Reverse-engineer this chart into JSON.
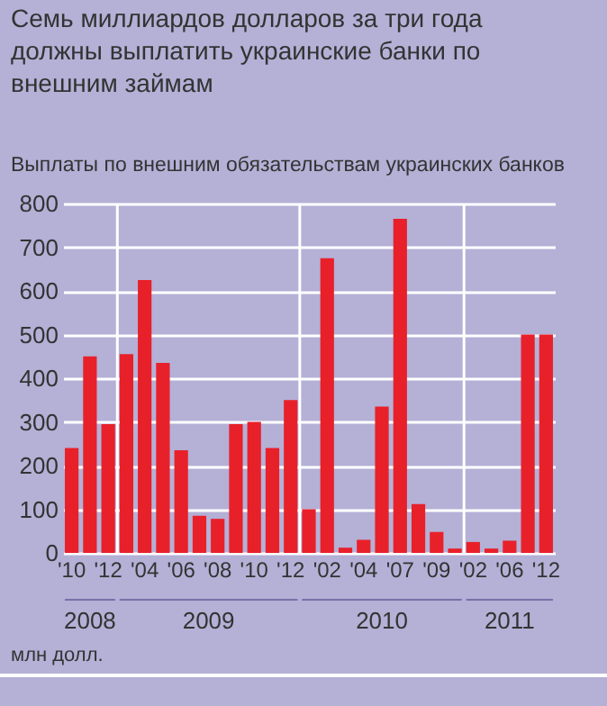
{
  "chart_data": {
    "type": "bar",
    "title": "Семь миллиардов долларов за три года должны выплатить украинские банки по внешним займам",
    "subtitle": "Выплаты по внешним обязательствам украинских банков",
    "ylabel": "млн долл.",
    "categories": [
      "'10",
      null,
      "'12",
      null,
      "'04",
      null,
      "'06",
      null,
      "'08",
      null,
      "'10",
      null,
      "'12",
      null,
      "'02",
      null,
      "'04",
      null,
      "'07",
      null,
      "'09",
      null,
      "'02",
      null,
      "'06",
      null,
      "'12"
    ],
    "values": [
      240,
      450,
      295,
      455,
      625,
      435,
      235,
      85,
      78,
      295,
      300,
      240,
      350,
      100,
      675,
      12,
      30,
      335,
      765,
      112,
      48,
      10,
      25,
      10,
      28,
      500,
      500
    ],
    "color": "#e8202a",
    "ylim": [
      0,
      800
    ],
    "yticks": [
      0,
      100,
      200,
      300,
      400,
      500,
      600,
      700,
      800
    ],
    "grid": "y",
    "annotations": [
      "2008",
      "2009",
      "2010",
      "2011"
    ]
  }
}
